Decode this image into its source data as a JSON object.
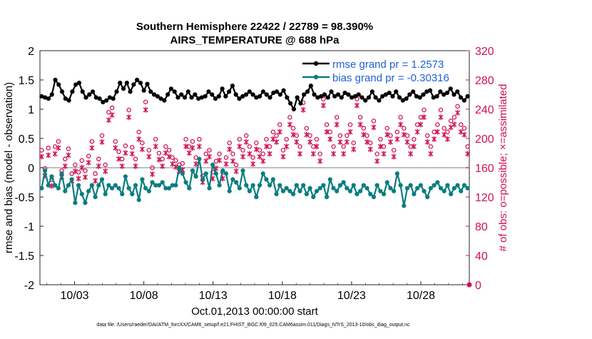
{
  "chart_data": {
    "type": "line",
    "title": "Southern Hemisphere 22422 / 22789 = 98.390%",
    "subtitle": "AIRS_TEMPERATURE @ 688 hPa",
    "xlabel": "Oct.01,2013 00:00:00 start",
    "ylabel_left": "rmse and bias (model - observation)",
    "ylabel_right": "# of obs: o=possible; ×=assimilated",
    "footnote": "data file: /Users/raeder/DAI/ATM_forcXX/CAM6_setup/f.e21.FHIST_BGC.f09_025.CAM6assim.011/Diags_NTrS_2013-10/obs_diag_output.nc",
    "x_range_days": [
      0.5,
      31.5
    ],
    "y_left_range": [
      -2,
      2
    ],
    "y_right_range": [
      0,
      320
    ],
    "x_ticks": [
      {
        "day": 3,
        "label": "10/03"
      },
      {
        "day": 8,
        "label": "10/08"
      },
      {
        "day": 13,
        "label": "10/13"
      },
      {
        "day": 18,
        "label": "10/18"
      },
      {
        "day": 23,
        "label": "10/23"
      },
      {
        "day": 28,
        "label": "10/28"
      }
    ],
    "y_left_ticks": [
      -2,
      -1.5,
      -1,
      -0.5,
      0,
      0.5,
      1,
      1.5,
      2
    ],
    "y_right_ticks": [
      0,
      40,
      80,
      120,
      160,
      200,
      240,
      280,
      320
    ],
    "series": [
      {
        "name": "rmse",
        "legend": "rmse grand pr = 1.2573",
        "color": "#000000",
        "values": [
          1.22,
          1.2,
          1.18,
          1.25,
          1.5,
          1.42,
          1.3,
          1.18,
          1.15,
          1.3,
          1.42,
          1.45,
          1.3,
          1.2,
          1.25,
          1.3,
          1.2,
          1.18,
          1.12,
          1.15,
          1.2,
          1.18,
          1.3,
          1.45,
          1.35,
          1.45,
          1.3,
          1.42,
          1.5,
          1.45,
          1.32,
          1.43,
          1.3,
          1.25,
          1.22,
          1.18,
          1.15,
          1.25,
          1.35,
          1.3,
          1.2,
          1.25,
          1.2,
          1.3,
          1.2,
          1.25,
          1.18,
          1.2,
          1.22,
          1.3,
          1.25,
          1.18,
          1.22,
          1.35,
          1.22,
          1.3,
          1.4,
          1.25,
          1.18,
          1.22,
          1.25,
          1.3,
          1.25,
          1.2,
          1.22,
          1.3,
          1.25,
          1.2,
          1.28,
          1.3,
          1.25,
          1.32,
          1.2,
          1.1,
          1.0,
          1.2,
          1.1,
          1.25,
          1.3,
          1.4,
          1.25,
          1.2,
          1.22,
          1.25,
          1.2,
          1.3,
          1.22,
          1.25,
          1.2,
          1.28,
          1.25,
          1.2,
          1.22,
          1.25,
          1.2,
          1.15,
          1.2,
          1.3,
          1.2,
          1.15,
          1.22,
          1.25,
          1.28,
          1.22,
          1.3,
          1.2,
          1.15,
          1.18,
          1.25,
          1.3,
          1.22,
          1.2,
          1.25,
          1.3,
          1.32,
          1.2,
          1.22,
          1.3,
          1.25,
          1.28,
          1.35,
          1.25,
          1.3,
          1.2,
          1.15,
          1.22
        ]
      },
      {
        "name": "bias",
        "legend": "bias grand pr = -0.30316",
        "color": "#0a7d7f",
        "values": [
          -0.35,
          -0.05,
          -0.3,
          -0.15,
          -0.3,
          -0.35,
          -0.1,
          -0.4,
          -0.3,
          -0.2,
          -0.6,
          -0.3,
          -0.45,
          -0.6,
          -0.4,
          -0.3,
          -0.5,
          -0.3,
          -0.2,
          -0.45,
          -0.3,
          -0.35,
          -0.3,
          -0.35,
          -0.45,
          -0.15,
          -0.35,
          -0.45,
          -0.3,
          -0.55,
          -0.2,
          -0.35,
          -0.4,
          -0.25,
          -0.3,
          -0.3,
          -0.25,
          -0.35,
          -0.35,
          -0.3,
          -0.3,
          0.0,
          -0.1,
          -0.25,
          -0.35,
          -0.05,
          -0.15,
          0.15,
          -0.2,
          -0.1,
          -0.35,
          0.05,
          -0.1,
          -0.3,
          -0.05,
          -0.1,
          -0.4,
          -0.2,
          -0.25,
          -0.35,
          -0.05,
          -0.3,
          -0.4,
          -0.3,
          -0.5,
          -0.3,
          -0.1,
          -0.2,
          -0.3,
          -0.2,
          -0.45,
          -0.3,
          -0.4,
          -0.35,
          -0.4,
          -0.45,
          -0.3,
          -0.4,
          -0.3,
          -0.45,
          -0.35,
          -0.5,
          -0.4,
          -0.35,
          -0.3,
          -0.5,
          -0.2,
          -0.35,
          -0.4,
          -0.3,
          -0.25,
          -0.35,
          -0.4,
          -0.3,
          -0.45,
          -0.4,
          -0.3,
          -0.35,
          -0.45,
          -0.5,
          -0.3,
          -0.4,
          -0.45,
          -0.25,
          -0.35,
          -0.4,
          -0.1,
          -0.3,
          -0.65,
          -0.35,
          -0.3,
          -0.45,
          -0.35,
          -0.3,
          -0.4,
          -0.5,
          -0.35,
          -0.3,
          -0.25,
          -0.35,
          -0.4,
          -0.3,
          -0.45,
          -0.35,
          -0.3,
          -0.4,
          -0.3,
          -0.35
        ]
      },
      {
        "name": "obs_possible",
        "marker": "o",
        "color": "#d11150",
        "values": [
          180,
          155,
          183,
          140,
          185,
          192,
          152,
          168,
          182,
          148,
          160,
          150,
          166,
          152,
          172,
          192,
          148,
          168,
          200,
          160,
          232,
          238,
          192,
          178,
          168,
          186,
          235,
          184,
          168,
          205,
          190,
          246,
          180,
          156,
          195,
          176,
          168,
          185,
          180,
          170,
          166,
          160,
          162,
          195,
          185,
          192,
          170,
          195,
          145,
          175,
          180,
          150,
          165,
          175,
          150,
          170,
          190,
          175,
          160,
          195,
          180,
          200,
          185,
          170,
          190,
          180,
          175,
          195,
          185,
          205,
          200,
          215,
          180,
          195,
          225,
          210,
          200,
          185,
          245,
          210,
          200,
          185,
          195,
          175,
          250,
          215,
          205,
          185,
          225,
          200,
          185,
          200,
          215,
          190,
          250,
          225,
          210,
          200,
          190,
          220,
          175,
          195,
          185,
          210,
          200,
          180,
          205,
          225,
          210,
          200,
          185,
          195,
          215,
          225,
          235,
          200,
          185,
          205,
          215,
          235,
          210,
          205,
          220,
          225,
          240,
          215,
          210,
          185
        ]
      },
      {
        "name": "obs_assimilated",
        "marker": "x",
        "color": "#d11150",
        "values": [
          178,
          152,
          180,
          138,
          182,
          190,
          150,
          165,
          180,
          145,
          158,
          148,
          163,
          150,
          170,
          190,
          145,
          165,
          198,
          158,
          228,
          235,
          190,
          175,
          165,
          183,
          232,
          182,
          165,
          202,
          188,
          242,
          178,
          154,
          192,
          174,
          165,
          183,
          178,
          168,
          164,
          158,
          160,
          192,
          183,
          190,
          168,
          192,
          143,
          172,
          178,
          148,
          162,
          173,
          148,
          168,
          188,
          172,
          158,
          192,
          178,
          198,
          182,
          168,
          188,
          178,
          172,
          192,
          182,
          202,
          198,
          212,
          178,
          192,
          222,
          208,
          198,
          182,
          242,
          208,
          198,
          182,
          192,
          172,
          248,
          212,
          202,
          182,
          222,
          198,
          182,
          198,
          212,
          188,
          248,
          222,
          208,
          198,
          188,
          218,
          172,
          192,
          182,
          208,
          198,
          178,
          202,
          222,
          208,
          198,
          182,
          192,
          212,
          222,
          232,
          198,
          182,
          202,
          212,
          232,
          208,
          202,
          218,
          222,
          238,
          212,
          208,
          182
        ]
      }
    ]
  }
}
